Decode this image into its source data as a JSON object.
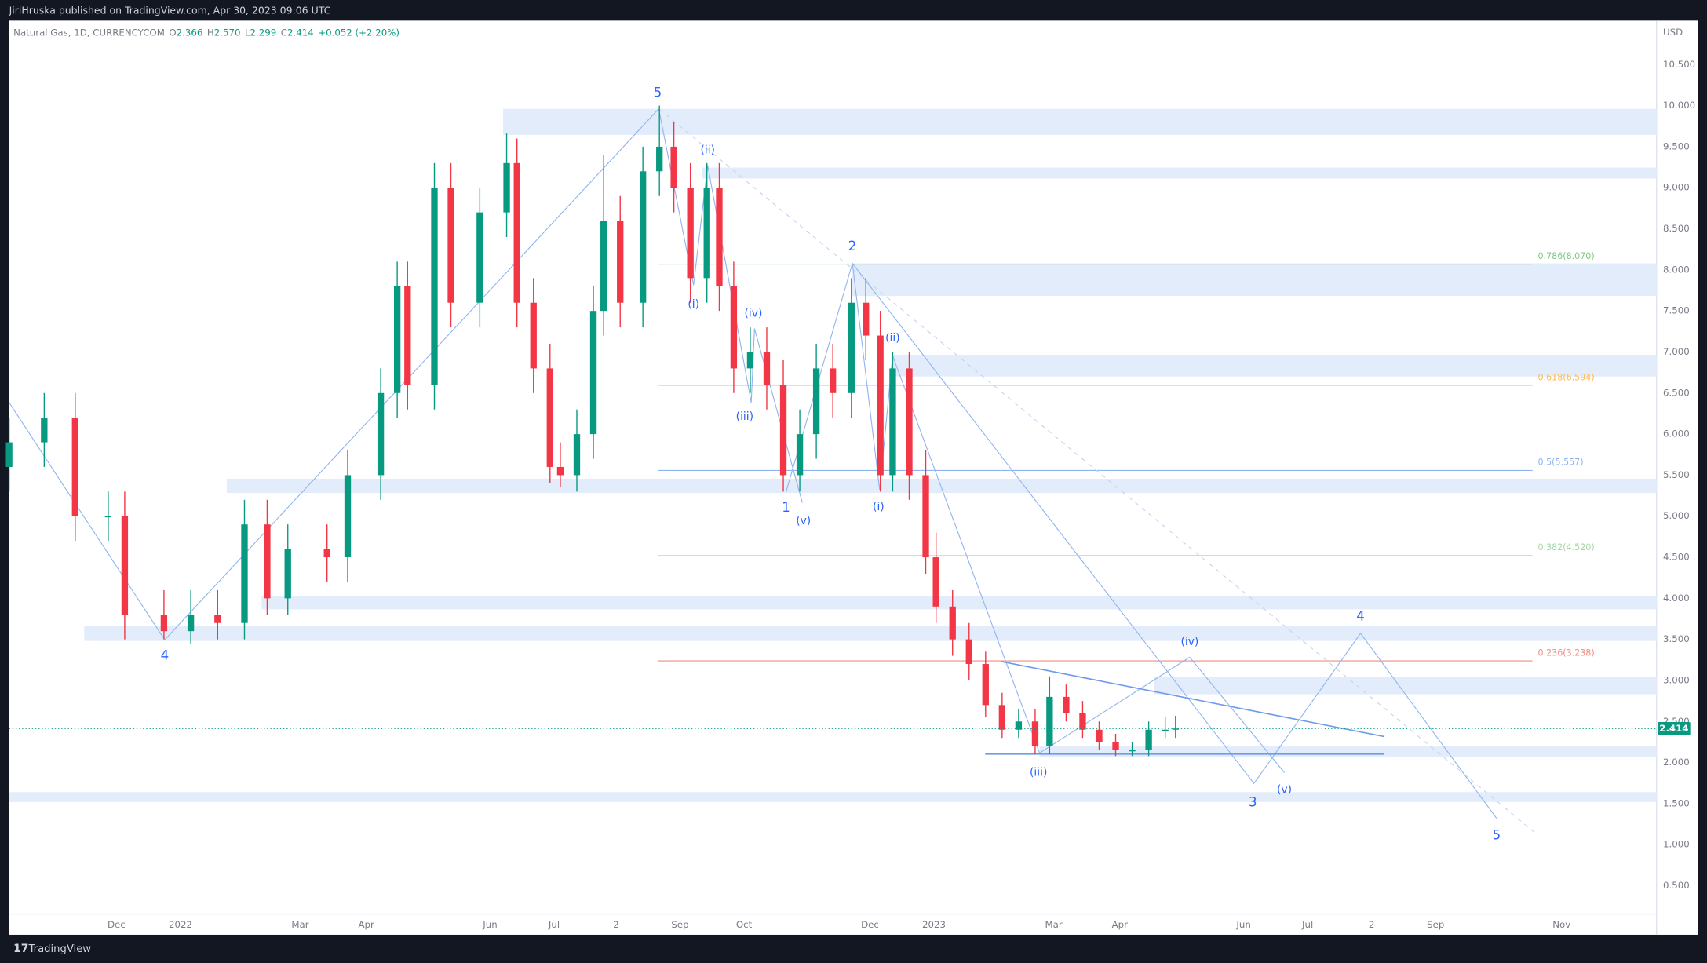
{
  "header": {
    "publisher": "JiriHruska published on TradingView.com, Apr 30, 2023 09:06 UTC",
    "symbol": "Natural Gas, 1D, CURRENCYCOM",
    "o_label": "O",
    "open": "2.366",
    "h_label": "H",
    "high": "2.570",
    "l_label": "L",
    "low": "2.299",
    "c_label": "C",
    "close": "2.414",
    "change": "+0.052 (+2.20%)",
    "currency": "USD"
  },
  "footer": {
    "brand": "TradingView"
  },
  "chart_data": {
    "type": "candlestick",
    "x": [
      -83,
      -66,
      -51,
      -35,
      -27,
      -8,
      5,
      18,
      31,
      42,
      52,
      71,
      81,
      97,
      105,
      110,
      123,
      131,
      145,
      158,
      163,
      171,
      179,
      184,
      192,
      200,
      205,
      213,
      224,
      232,
      239,
      247,
      255,
      261,
      268,
      276,
      284,
      292,
      300,
      308,
      316,
      325,
      332,
      339,
      345,
      353,
      361,
      366,
      374,
      382,
      390,
      398,
      406,
      414,
      421,
      429,
      437,
      445,
      453,
      461,
      469,
      477,
      482
    ],
    "open": [
      5.6,
      5.9,
      6.2,
      5.0,
      5.0,
      3.8,
      3.6,
      3.8,
      3.7,
      4.9,
      4.0,
      4.6,
      4.5,
      5.5,
      6.5,
      7.8,
      6.6,
      9.0,
      7.6,
      8.7,
      9.3,
      7.6,
      6.8,
      5.6,
      5.5,
      6.0,
      7.5,
      8.6,
      7.6,
      9.2,
      9.5,
      9.0,
      7.9,
      9.0,
      7.8,
      6.8,
      7.0,
      6.6,
      5.5,
      6.0,
      6.8,
      6.5,
      7.6,
      7.2,
      5.5,
      6.8,
      5.5,
      4.5,
      3.9,
      3.5,
      3.2,
      2.7,
      2.4,
      2.5,
      2.2,
      2.8,
      2.6,
      2.4,
      2.25,
      2.15,
      2.15,
      2.4,
      2.4
    ],
    "high": [
      6.2,
      6.5,
      6.5,
      5.3,
      5.3,
      4.1,
      4.1,
      4.1,
      5.2,
      5.2,
      4.9,
      4.9,
      5.8,
      6.8,
      8.1,
      8.1,
      9.3,
      9.3,
      9.0,
      9.66,
      9.6,
      7.9,
      7.1,
      5.9,
      6.3,
      7.8,
      9.4,
      8.9,
      9.5,
      10.0,
      9.8,
      9.3,
      9.3,
      9.3,
      8.1,
      7.3,
      7.3,
      6.9,
      6.3,
      7.1,
      7.1,
      7.9,
      7.9,
      7.5,
      7.0,
      7.0,
      5.8,
      4.8,
      4.1,
      3.7,
      3.35,
      2.85,
      2.65,
      2.65,
      3.05,
      2.95,
      2.75,
      2.5,
      2.35,
      2.25,
      2.5,
      2.55,
      2.57
    ],
    "low": [
      5.3,
      5.6,
      4.7,
      4.7,
      3.5,
      3.5,
      3.45,
      3.5,
      3.5,
      3.8,
      3.8,
      4.2,
      4.2,
      5.2,
      6.2,
      6.3,
      6.3,
      7.3,
      7.3,
      8.4,
      7.3,
      6.5,
      5.4,
      5.35,
      5.3,
      5.7,
      7.2,
      7.3,
      7.3,
      8.9,
      8.7,
      7.6,
      7.6,
      7.5,
      6.5,
      6.5,
      6.3,
      5.3,
      5.3,
      5.7,
      6.2,
      6.2,
      6.9,
      5.3,
      5.3,
      5.2,
      4.3,
      3.7,
      3.3,
      3.0,
      2.55,
      2.3,
      2.3,
      2.1,
      2.1,
      2.5,
      2.3,
      2.15,
      2.08,
      2.08,
      2.08,
      2.3,
      2.3
    ],
    "close": [
      5.9,
      6.2,
      5.0,
      5.0,
      3.8,
      3.6,
      3.8,
      3.7,
      4.9,
      4.0,
      4.6,
      4.5,
      5.5,
      6.5,
      7.8,
      6.6,
      9.0,
      7.6,
      8.7,
      9.3,
      7.6,
      6.8,
      5.6,
      5.5,
      6.0,
      7.5,
      8.6,
      7.6,
      9.2,
      9.5,
      9.0,
      7.9,
      9.0,
      7.8,
      6.8,
      7.0,
      6.6,
      5.5,
      6.0,
      6.8,
      6.5,
      7.6,
      7.2,
      5.5,
      6.8,
      5.5,
      4.5,
      3.9,
      3.5,
      3.2,
      2.7,
      2.4,
      2.5,
      2.2,
      2.8,
      2.6,
      2.4,
      2.25,
      2.15,
      2.15,
      2.4,
      2.4,
      2.414
    ],
    "up_color": "#089981",
    "down_color": "#f23645",
    "last_price": 2.414,
    "xlim": [
      -83,
      715
    ],
    "xticks": [
      {
        "value": -31,
        "label": "Dec"
      },
      {
        "value": 0,
        "label": "2022"
      },
      {
        "value": 58,
        "label": "Mar"
      },
      {
        "value": 90,
        "label": "Apr"
      },
      {
        "value": 150,
        "label": "Jun"
      },
      {
        "value": 181,
        "label": "Jul"
      },
      {
        "value": 211,
        "label": "2"
      },
      {
        "value": 242,
        "label": "Sep"
      },
      {
        "value": 273,
        "label": "Oct"
      },
      {
        "value": 334,
        "label": "Dec"
      },
      {
        "value": 365,
        "label": "2023"
      },
      {
        "value": 423,
        "label": "Mar"
      },
      {
        "value": 455,
        "label": "Apr"
      },
      {
        "value": 515,
        "label": "Jun"
      },
      {
        "value": 546,
        "label": "Jul"
      },
      {
        "value": 577,
        "label": "2"
      },
      {
        "value": 608,
        "label": "Sep"
      },
      {
        "value": 669,
        "label": "Nov"
      }
    ],
    "ylim": [
      0.155,
      11.035
    ],
    "yticks": [
      {
        "value": 0.5,
        "label": "0.500"
      },
      {
        "value": 1,
        "label": "1.000"
      },
      {
        "value": 1.5,
        "label": "1.500"
      },
      {
        "value": 2,
        "label": "2.000"
      },
      {
        "value": 2.5,
        "label": "2.500"
      },
      {
        "value": 3,
        "label": "3.000"
      },
      {
        "value": 3.5,
        "label": "3.500"
      },
      {
        "value": 4,
        "label": "4.000"
      },
      {
        "value": 4.5,
        "label": "4.500"
      },
      {
        "value": 5,
        "label": "5.000"
      },
      {
        "value": 5.5,
        "label": "5.500"
      },
      {
        "value": 6,
        "label": "6.000"
      },
      {
        "value": 6.5,
        "label": "6.500"
      },
      {
        "value": 7,
        "label": "7.000"
      },
      {
        "value": 7.5,
        "label": "7.500"
      },
      {
        "value": 8,
        "label": "8.000"
      },
      {
        "value": 8.5,
        "label": "8.500"
      },
      {
        "value": 9,
        "label": "9.000"
      },
      {
        "value": 9.5,
        "label": "9.500"
      },
      {
        "value": 10,
        "label": "10.000"
      },
      {
        "value": 10.5,
        "label": "10.500"
      }
    ],
    "grid": false,
    "fib_levels": [
      {
        "label": "0.786(8.070)",
        "value": 8.07,
        "color": "#81c784"
      },
      {
        "label": "0.618(6.594)",
        "value": 6.594,
        "color": "#ffb74d"
      },
      {
        "label": "0.5(5.557)",
        "value": 5.557,
        "color": "#90b4ef"
      },
      {
        "label": "0.382(4.520)",
        "value": 4.52,
        "color": "#a5d6a7"
      },
      {
        "label": "0.236(3.238)",
        "value": 3.238,
        "color": "#f28b82"
      }
    ],
    "annotations": [
      "5",
      "(ii)",
      "2",
      "(i)",
      "(iv)",
      "(iii)",
      "1",
      "(v)",
      "(ii)",
      "(i)",
      "4",
      "(iii)",
      "(iv)",
      "3",
      "(v)",
      "4",
      "5"
    ]
  }
}
